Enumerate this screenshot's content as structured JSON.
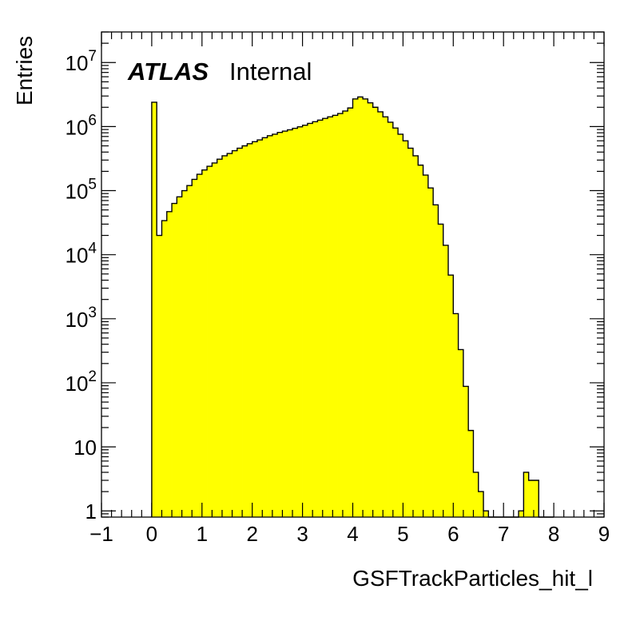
{
  "chart_data": {
    "type": "histogram",
    "xlabel": "GSFTrackParticles_hit_l",
    "ylabel": "Entries",
    "label_bold": "ATLAS",
    "label_plain": "Internal",
    "log_y": true,
    "xlim": [
      -1,
      9
    ],
    "ylim": [
      0.8,
      30000000
    ],
    "x_ticks": [
      -1,
      0,
      1,
      2,
      3,
      4,
      5,
      6,
      7,
      8,
      9
    ],
    "x_tick_labels": [
      "−1",
      "0",
      "1",
      "2",
      "3",
      "4",
      "5",
      "6",
      "7",
      "8",
      "9"
    ],
    "y_tick_labels": [
      {
        "value": 1,
        "base": "1",
        "exp": ""
      },
      {
        "value": 10,
        "base": "10",
        "exp": ""
      },
      {
        "value": 100,
        "base": "10",
        "exp": "2"
      },
      {
        "value": 1000,
        "base": "10",
        "exp": "3"
      },
      {
        "value": 10000,
        "base": "10",
        "exp": "4"
      },
      {
        "value": 100000,
        "base": "10",
        "exp": "5"
      },
      {
        "value": 1000000,
        "base": "10",
        "exp": "6"
      },
      {
        "value": 10000000,
        "base": "10",
        "exp": "7"
      }
    ],
    "bin_width": 0.1,
    "bins_start": 0,
    "values": [
      2400000,
      20000,
      34000,
      47000,
      63000,
      80000,
      100000,
      120000,
      150000,
      180000,
      210000,
      240000,
      270000,
      310000,
      350000,
      380000,
      420000,
      460000,
      500000,
      540000,
      580000,
      620000,
      670000,
      720000,
      760000,
      810000,
      850000,
      890000,
      940000,
      990000,
      1050000,
      1120000,
      1190000,
      1260000,
      1340000,
      1420000,
      1500000,
      1600000,
      1750000,
      1950000,
      2700000,
      2900000,
      2700000,
      2350000,
      2000000,
      1700000,
      1420000,
      1170000,
      950000,
      760000,
      600000,
      460000,
      350000,
      250000,
      175000,
      110000,
      60000,
      30000,
      14000,
      4800,
      1200,
      330,
      88,
      18,
      4,
      2,
      1,
      0,
      0,
      0,
      0,
      0,
      0,
      0,
      0,
      0,
      0,
      0,
      0,
      0
    ],
    "values_tail": {
      "7.2-7.3": 0,
      "7.3-7.4": 1,
      "7.4-7.5": 4,
      "7.5-7.6": 3,
      "7.6-7.7": 3
    },
    "fill_color": "#ffff00",
    "line_color": "#000000",
    "grid": false
  }
}
